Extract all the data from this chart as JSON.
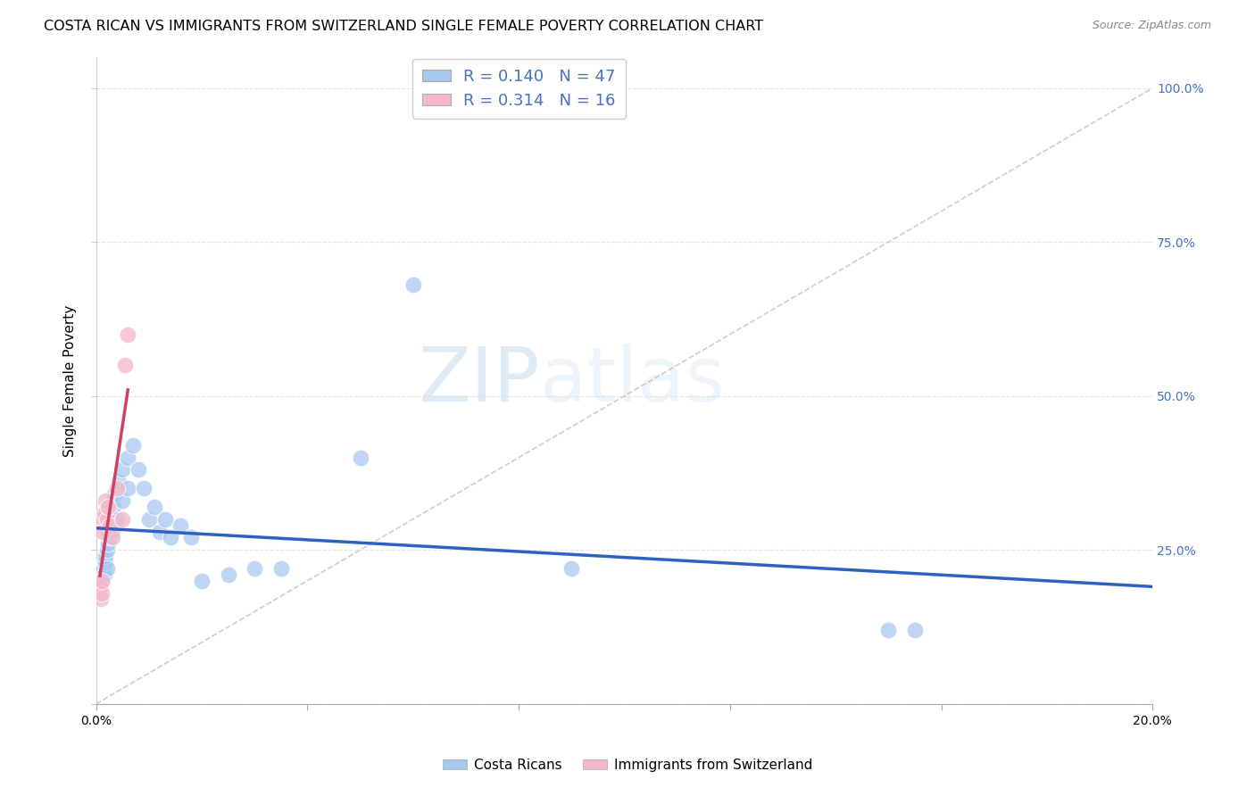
{
  "title": "COSTA RICAN VS IMMIGRANTS FROM SWITZERLAND SINGLE FEMALE POVERTY CORRELATION CHART",
  "source": "Source: ZipAtlas.com",
  "ylabel": "Single Female Poverty",
  "y_ticks": [
    0.0,
    0.25,
    0.5,
    0.75,
    1.0
  ],
  "right_y_tick_labels": [
    "",
    "25.0%",
    "50.0%",
    "75.0%",
    "100.0%"
  ],
  "x_range": [
    0.0,
    0.2
  ],
  "y_range": [
    0.0,
    1.05
  ],
  "watermark_zip": "ZIP",
  "watermark_atlas": "atlas",
  "costa_rican_R": 0.14,
  "costa_rican_N": 47,
  "swiss_R": 0.314,
  "swiss_N": 16,
  "costa_rican_color": "#a8c8f0",
  "swiss_color": "#f4b8c8",
  "trend_costa_rican_color": "#3060c0",
  "trend_swiss_color": "#d04060",
  "costa_rican_x": [
    0.0008,
    0.0009,
    0.001,
    0.001,
    0.0011,
    0.0012,
    0.0013,
    0.0013,
    0.0014,
    0.0015,
    0.0016,
    0.0017,
    0.0018,
    0.002,
    0.002,
    0.0022,
    0.0023,
    0.0025,
    0.003,
    0.003,
    0.0032,
    0.0035,
    0.004,
    0.0042,
    0.005,
    0.005,
    0.006,
    0.006,
    0.007,
    0.008,
    0.009,
    0.01,
    0.011,
    0.012,
    0.013,
    0.014,
    0.016,
    0.018,
    0.02,
    0.025,
    0.03,
    0.035,
    0.05,
    0.06,
    0.09,
    0.15,
    0.155
  ],
  "costa_rican_y": [
    0.2,
    0.22,
    0.21,
    0.23,
    0.2,
    0.22,
    0.2,
    0.21,
    0.22,
    0.23,
    0.21,
    0.23,
    0.24,
    0.22,
    0.25,
    0.26,
    0.28,
    0.27,
    0.3,
    0.28,
    0.32,
    0.34,
    0.3,
    0.36,
    0.33,
    0.38,
    0.35,
    0.4,
    0.42,
    0.38,
    0.35,
    0.3,
    0.32,
    0.28,
    0.3,
    0.27,
    0.29,
    0.27,
    0.2,
    0.21,
    0.22,
    0.22,
    0.4,
    0.68,
    0.22,
    0.12,
    0.12
  ],
  "swiss_x": [
    0.0007,
    0.0008,
    0.001,
    0.0011,
    0.0012,
    0.0013,
    0.0015,
    0.0017,
    0.002,
    0.0022,
    0.0025,
    0.003,
    0.004,
    0.005,
    0.0055,
    0.006
  ],
  "swiss_y": [
    0.19,
    0.17,
    0.18,
    0.2,
    0.3,
    0.28,
    0.31,
    0.33,
    0.3,
    0.32,
    0.29,
    0.27,
    0.35,
    0.3,
    0.55,
    0.6
  ],
  "diag_color": "#d0b0b0",
  "background_color": "#ffffff",
  "grid_color": "#e0e0e0",
  "title_fontsize": 11.5,
  "axis_label_fontsize": 11,
  "tick_fontsize": 10,
  "legend_fontsize": 13
}
